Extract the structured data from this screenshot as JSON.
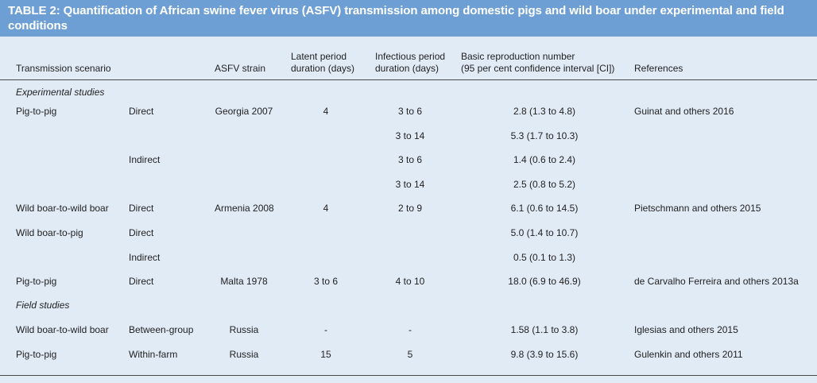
{
  "caption": "TABLE 2: Quantification of African swine fever virus (ASFV) transmission among domestic pigs and wild boar under experimental and field conditions",
  "headers": {
    "scenario": "Transmission scenario",
    "strain": "ASFV strain",
    "latent_1": "Latent period",
    "latent_2": "duration (days)",
    "infectious_1": "Infectious period",
    "infectious_2": "duration (days)",
    "r0_1": "Basic reproduction number",
    "r0_2": "(95 per cent confidence interval [CI])",
    "refs": "References"
  },
  "sections": {
    "experimental": "Experimental studies",
    "field": "Field studies"
  },
  "rows": [
    {
      "scenario": "Pig-to-pig",
      "type": "Direct",
      "strain": "Georgia 2007",
      "latent": "4",
      "infectious": "3 to 6",
      "r0": "2.8 (1.3 to 4.8)",
      "ref": "Guinat and others 2016"
    },
    {
      "scenario": "",
      "type": "",
      "strain": "",
      "latent": "",
      "infectious": "3 to 14",
      "r0": "5.3 (1.7 to 10.3)",
      "ref": ""
    },
    {
      "scenario": "",
      "type": "Indirect",
      "strain": "",
      "latent": "",
      "infectious": "3 to 6",
      "r0": "1.4 (0.6 to 2.4)",
      "ref": ""
    },
    {
      "scenario": "",
      "type": "",
      "strain": "",
      "latent": "",
      "infectious": "3 to 14",
      "r0": "2.5 (0.8 to 5.2)",
      "ref": ""
    },
    {
      "scenario": "Wild boar-to-wild boar",
      "type": "Direct",
      "strain": "Armenia 2008",
      "latent": "4",
      "infectious": "2 to 9",
      "r0": "6.1 (0.6 to 14.5)",
      "ref": "Pietschmann and others 2015"
    },
    {
      "scenario": "Wild boar-to-pig",
      "type": "Direct",
      "strain": "",
      "latent": "",
      "infectious": "",
      "r0": "5.0 (1.4 to 10.7)",
      "ref": ""
    },
    {
      "scenario": "",
      "type": "Indirect",
      "strain": "",
      "latent": "",
      "infectious": "",
      "r0": "0.5 (0.1 to 1.3)",
      "ref": ""
    },
    {
      "scenario": "Pig-to-pig",
      "type": "Direct",
      "strain": "Malta 1978",
      "latent": "3 to 6",
      "infectious": "4 to 10",
      "r0": "18.0 (6.9 to 46.9)",
      "ref": "de Carvalho Ferreira and others 2013a"
    },
    {
      "scenario": "Wild boar-to-wild boar",
      "type": "Between-group",
      "strain": "Russia",
      "latent": "-",
      "infectious": "-",
      "r0": "1.58 (1.1 to 3.8)",
      "ref": "Iglesias and others 2015"
    },
    {
      "scenario": "Pig-to-pig",
      "type": "Within-farm",
      "strain": "Russia",
      "latent": "15",
      "infectious": "5",
      "r0": "9.8 (3.9 to 15.6)",
      "ref": "Gulenkin and others 2011"
    }
  ],
  "colors": {
    "caption_bg": "#6d9fd4",
    "table_bg": "#e1ebf6"
  }
}
